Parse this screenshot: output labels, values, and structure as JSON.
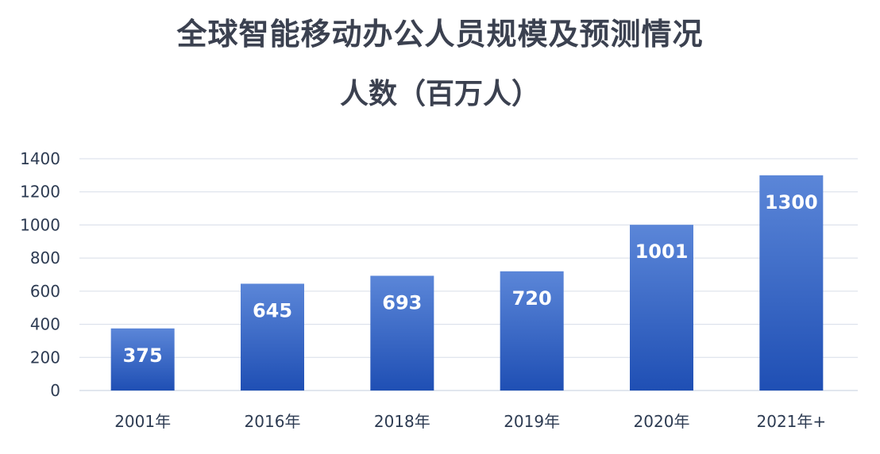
{
  "chart_data": {
    "type": "bar",
    "title": "全球智能移动办公人员规模及预测情况",
    "subtitle": "人数（百万人）",
    "categories": [
      "2001年",
      "2016年",
      "2018年",
      "2019年",
      "2020年",
      "2021年+"
    ],
    "values": [
      375,
      645,
      693,
      720,
      1001,
      1300
    ],
    "data_labels": [
      "375",
      "645",
      "693",
      "720",
      "1001",
      "1300"
    ],
    "y_ticks": [
      0,
      200,
      400,
      600,
      800,
      1000,
      1200,
      1400
    ],
    "ylim": [
      0,
      1400
    ],
    "grid": true,
    "legend": "none",
    "colors": {
      "bar_top": "#5b86d8",
      "bar_bottom": "#1f4fb4",
      "grid": "#d7dde8",
      "text": "#2d3b52",
      "title": "#3b4150"
    }
  }
}
